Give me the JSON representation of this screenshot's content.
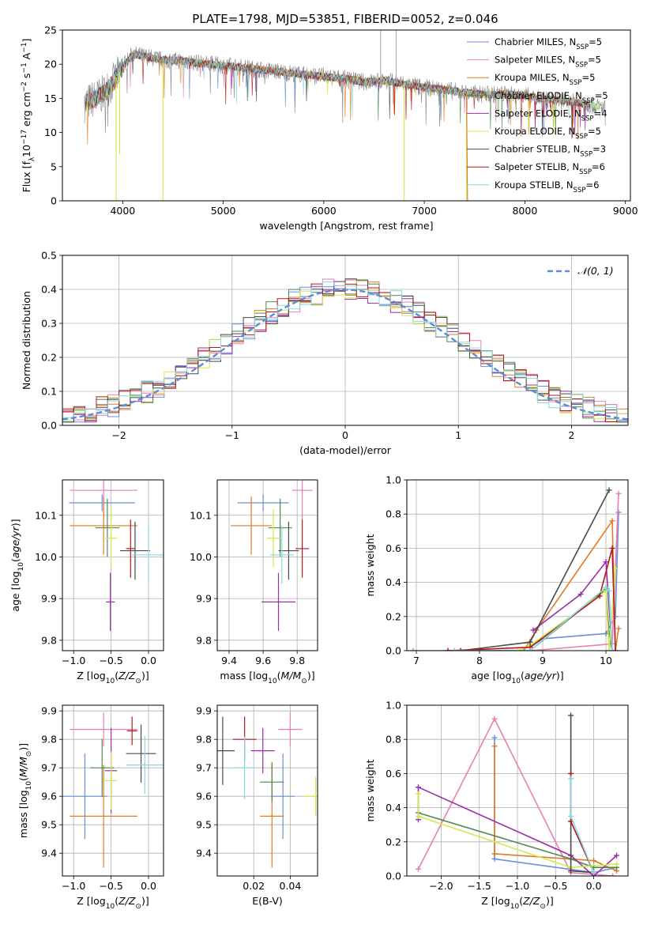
{
  "figure_title": "PLATE=1798, MJD=53851, FIBERID=0052, z=0.046",
  "colors": {
    "Chabrier MILES": "#6a8fd8",
    "Salpeter MILES": "#e87fb6",
    "Kroupa MILES": "#e07b27",
    "Chabrier ELODIE": "#4f8a4f",
    "Salpeter ELODIE": "#9b2faa",
    "Kroupa ELODIE": "#d4e84a",
    "Chabrier STELIB": "#4a4a4a",
    "Salpeter STELIB": "#b01b1b",
    "Kroupa STELIB": "#86d9e0",
    "spectrum": "#808080",
    "gaussian": "#5b8dd9"
  },
  "chart_data": [
    {
      "id": "spectrum",
      "type": "line",
      "title": "PLATE=1798, MJD=53851, FIBERID=0052, z=0.046",
      "xlabel": "wavelength [Angstrom, rest frame]",
      "ylabel": "Flux [f_λ 10^-17 erg cm^-2 s^-1 A^-1]",
      "xlim": [
        3400,
        9050
      ],
      "ylim": [
        0,
        25
      ],
      "xticks": [
        4000,
        5000,
        6000,
        7000,
        8000,
        9000
      ],
      "yticks": [
        0,
        5,
        10,
        15,
        20,
        25
      ],
      "grid": false,
      "legend_position": "right",
      "legend": [
        {
          "label": "Chabrier MILES, N",
          "sub": "SSP",
          "suffix": "=5"
        },
        {
          "label": "Salpeter MILES, N",
          "sub": "SSP",
          "suffix": "=5"
        },
        {
          "label": "Kroupa MILES, N",
          "sub": "SSP",
          "suffix": "=5"
        },
        {
          "label": "Chabrier ELODIE, N",
          "sub": "SSP",
          "suffix": "=5"
        },
        {
          "label": "Salpeter ELODIE, N",
          "sub": "SSP",
          "suffix": "=4"
        },
        {
          "label": "Kroupa ELODIE, N",
          "sub": "SSP",
          "suffix": "=5"
        },
        {
          "label": "Chabrier STELIB, N",
          "sub": "SSP",
          "suffix": "=3"
        },
        {
          "label": "Salpeter STELIB, N",
          "sub": "SSP",
          "suffix": "=6"
        },
        {
          "label": "Kroupa STELIB, N",
          "sub": "SSP",
          "suffix": "=6"
        }
      ],
      "continuum": {
        "x": [
          3620,
          3700,
          3800,
          3900,
          4000,
          4100,
          4200,
          4400,
          4600,
          4800,
          5000,
          5200,
          5500,
          5800,
          6000,
          6200,
          6400,
          6600,
          6800,
          7000,
          7200,
          7400,
          7600,
          7800,
          8000,
          8200,
          8400,
          8600,
          8800
        ],
        "y": [
          14.2,
          14.8,
          15.6,
          17.2,
          19.6,
          21.5,
          21.2,
          20.6,
          20.5,
          20.1,
          19.8,
          19.5,
          19.0,
          18.5,
          18.2,
          17.9,
          17.4,
          17.6,
          17.1,
          16.6,
          16.3,
          15.8,
          15.6,
          15.6,
          15.4,
          14.9,
          14.6,
          14.2,
          13.6
        ]
      },
      "spikes": [
        {
          "x": 3935,
          "y": 0
        },
        {
          "x": 3970,
          "y": 6.8
        },
        {
          "x": 4400,
          "y": 0
        },
        {
          "x": 6565,
          "y": 25
        },
        {
          "x": 6720,
          "y": 25
        },
        {
          "x": 6800,
          "y": 0
        },
        {
          "x": 7420,
          "y": 0
        }
      ]
    },
    {
      "id": "residuals",
      "type": "histogram",
      "xlabel": "(data-model)/error",
      "ylabel": "Normed distribution",
      "xlim": [
        -2.5,
        2.5
      ],
      "ylim": [
        0,
        0.5
      ],
      "xticks": [
        -2,
        -1,
        0,
        1,
        2
      ],
      "yticks": [
        0.0,
        0.1,
        0.2,
        0.3,
        0.4,
        0.5
      ],
      "grid": true,
      "legend_position": "top-right",
      "gaussian_label": "𝒩(0, 1)",
      "bin_width": 0.1
    },
    {
      "id": "age_vs_z",
      "type": "scatter",
      "xlabel": "Z [log10(Z/Z⊙)]",
      "ylabel": "age [log10(age/yr)]",
      "xlim": [
        -1.15,
        0.2
      ],
      "ylim": [
        9.775,
        10.185
      ],
      "xticks": [
        -1.0,
        -0.5,
        0.0
      ],
      "yticks": [
        9.8,
        9.9,
        10.0,
        10.1
      ],
      "grid": true,
      "points": [
        {
          "model": "Chabrier MILES",
          "x": -0.62,
          "xerr": 0.44,
          "y": 10.13,
          "yerr": 0.02
        },
        {
          "model": "Salpeter MILES",
          "x": -0.6,
          "xerr": 0.45,
          "y": 10.16,
          "yerr": 0.0
        },
        {
          "model": "Kroupa MILES",
          "x": -0.6,
          "xerr": 0.45,
          "y": 10.075,
          "yerr": 0.0
        },
        {
          "model": "Chabrier ELODIE",
          "x": -0.55,
          "xerr": 0.0,
          "y": 10.07,
          "yerr": 0.0
        },
        {
          "model": "Salpeter ELODIE",
          "x": -0.51,
          "xerr": 0.06,
          "y": 9.892,
          "yerr": 0.0
        },
        {
          "model": "Kroupa ELODIE",
          "x": -0.5,
          "xerr": 0.08,
          "y": 10.045,
          "yerr": 0.0
        },
        {
          "model": "Chabrier STELIB",
          "x": -0.18,
          "xerr": 0.2,
          "y": 10.015,
          "yerr": 0.0
        },
        {
          "model": "Salpeter STELIB",
          "x": -0.24,
          "xerr": 0.06,
          "y": 10.02,
          "yerr": 0.0
        },
        {
          "model": "Kroupa STELIB",
          "x": 0.0,
          "xerr": 0.22,
          "y": 10.005,
          "yerr": 0.0
        }
      ]
    },
    {
      "id": "age_vs_mass",
      "type": "scatter",
      "xlabel": "mass [log10(M/M⊙)]",
      "ylabel": "",
      "xlim": [
        9.33,
        9.92
      ],
      "ylim": [
        9.775,
        10.185
      ],
      "xticks": [
        9.4,
        9.6,
        9.8
      ],
      "yticks": [
        9.8,
        9.9,
        10.0,
        10.1
      ],
      "grid": true,
      "points": [
        {
          "model": "Chabrier MILES",
          "x": 9.6,
          "xerr": 0.15,
          "y": 10.13,
          "yerr": 0.02
        },
        {
          "model": "Salpeter MILES",
          "x": 9.83,
          "xerr": 0.06,
          "y": 10.16,
          "yerr": 0.0
        },
        {
          "model": "Kroupa MILES",
          "x": 9.53,
          "xerr": 0.12,
          "y": 10.075,
          "yerr": 0.0
        },
        {
          "model": "Chabrier ELODIE",
          "x": 9.7,
          "xerr": 0.0,
          "y": 10.07,
          "yerr": 0.0
        },
        {
          "model": "Salpeter ELODIE",
          "x": 9.69,
          "xerr": 0.1,
          "y": 9.892,
          "yerr": 0.0
        },
        {
          "model": "Kroupa ELODIE",
          "x": 9.66,
          "xerr": 0.04,
          "y": 10.045,
          "yerr": 0.0
        },
        {
          "model": "Chabrier STELIB",
          "x": 9.75,
          "xerr": 0.06,
          "y": 10.015,
          "yerr": 0.0
        },
        {
          "model": "Salpeter STELIB",
          "x": 9.83,
          "xerr": 0.04,
          "y": 10.02,
          "yerr": 0.0
        },
        {
          "model": "Kroupa STELIB",
          "x": 9.71,
          "xerr": 0.0,
          "y": 10.005,
          "yerr": 0.0
        }
      ]
    },
    {
      "id": "weight_vs_age",
      "type": "line",
      "xlabel": "age [log10(age/yr)]",
      "ylabel": "mass weight",
      "xlim": [
        6.85,
        10.35
      ],
      "ylim": [
        0,
        1
      ],
      "xticks": [
        7,
        8,
        9,
        10
      ],
      "yticks": [
        0.0,
        0.2,
        0.4,
        0.6,
        0.8,
        1.0
      ],
      "grid": true,
      "series": [
        {
          "model": "Chabrier MILES",
          "x": [
            8.8,
            9.0,
            10.0,
            10.15,
            10.2
          ],
          "y": [
            0.02,
            0.07,
            0.1,
            0.2,
            0.81
          ]
        },
        {
          "model": "Salpeter MILES",
          "x": [
            6.95,
            7.6,
            8.8,
            10.1,
            10.2
          ],
          "y": [
            0.0,
            0.0,
            0.0,
            0.04,
            0.92
          ]
        },
        {
          "model": "Kroupa MILES",
          "x": [
            8.7,
            8.9,
            10.1,
            10.15,
            10.2
          ],
          "y": [
            0.0,
            0.12,
            0.76,
            0.0,
            0.13
          ]
        },
        {
          "model": "Chabrier ELODIE",
          "x": [
            8.0,
            8.8,
            10.0,
            10.05,
            10.1
          ],
          "y": [
            0.0,
            0.0,
            0.36,
            0.1,
            0.0
          ]
        },
        {
          "model": "Salpeter ELODIE",
          "x": [
            8.85,
            9.6,
            10.0,
            10.1
          ],
          "y": [
            0.12,
            0.33,
            0.52,
            0.0
          ]
        },
        {
          "model": "Kroupa ELODIE",
          "x": [
            8.6,
            8.8,
            10.0,
            10.05,
            10.15
          ],
          "y": [
            0.0,
            0.03,
            0.35,
            0.0,
            0.48
          ]
        },
        {
          "model": "Chabrier STELIB",
          "x": [
            7.7,
            8.8,
            10.05
          ],
          "y": [
            0.0,
            0.05,
            0.94
          ]
        },
        {
          "model": "Salpeter STELIB",
          "x": [
            7.5,
            8.8,
            9.9,
            10.1,
            10.15
          ],
          "y": [
            0.0,
            0.02,
            0.32,
            0.6,
            0.0
          ]
        },
        {
          "model": "Kroupa STELIB",
          "x": [
            7.6,
            8.8,
            10.0,
            10.05,
            10.1
          ],
          "y": [
            0.0,
            0.0,
            0.37,
            0.35,
            0.0
          ]
        }
      ]
    },
    {
      "id": "mass_vs_z",
      "type": "scatter",
      "xlabel": "Z [log10(Z/Z⊙)]",
      "ylabel": "mass [log10(M/M⊙)]",
      "xlim": [
        -1.15,
        0.2
      ],
      "ylim": [
        9.32,
        9.92
      ],
      "xticks": [
        -1.0,
        -0.5,
        0.0
      ],
      "yticks": [
        9.4,
        9.5,
        9.6,
        9.7,
        9.8,
        9.9
      ],
      "grid": true,
      "points": [
        {
          "model": "Chabrier MILES",
          "x": -0.85,
          "xerr": 0.3,
          "y": 9.6,
          "yerr": 0.15
        },
        {
          "model": "Salpeter MILES",
          "x": -0.6,
          "xerr": 0.45,
          "y": 9.835,
          "yerr": 0.06
        },
        {
          "model": "Kroupa MILES",
          "x": -0.6,
          "xerr": 0.45,
          "y": 9.53,
          "yerr": 0.18
        },
        {
          "model": "Chabrier ELODIE",
          "x": -0.62,
          "xerr": 0.0,
          "y": 9.7,
          "yerr": 0.0
        },
        {
          "model": "Salpeter ELODIE",
          "x": -0.5,
          "xerr": 0.08,
          "y": 9.69,
          "yerr": 0.15
        },
        {
          "model": "Kroupa ELODIE",
          "x": -0.5,
          "xerr": 0.08,
          "y": 9.655,
          "yerr": 0.0
        },
        {
          "model": "Chabrier STELIB",
          "x": -0.1,
          "xerr": 0.2,
          "y": 9.75,
          "yerr": 0.0
        },
        {
          "model": "Salpeter STELIB",
          "x": -0.22,
          "xerr": 0.07,
          "y": 9.83,
          "yerr": 0.05
        },
        {
          "model": "Kroupa STELIB",
          "x": -0.05,
          "xerr": 0.25,
          "y": 9.71,
          "yerr": 0.0
        }
      ]
    },
    {
      "id": "mass_vs_ebv",
      "type": "scatter",
      "xlabel": "E(B-V)",
      "ylabel": "",
      "xlim": [
        0.0,
        0.055
      ],
      "ylim": [
        9.32,
        9.92
      ],
      "xticks": [
        0.02,
        0.04
      ],
      "yticks": [
        9.4,
        9.5,
        9.6,
        9.7,
        9.8,
        9.9
      ],
      "grid": true,
      "points": [
        {
          "model": "Chabrier MILES",
          "x": 0.036,
          "xerr": 0.0,
          "y": 9.6,
          "yerr": 0.15
        },
        {
          "model": "Salpeter MILES",
          "x": 0.04,
          "xerr": 0.0,
          "y": 9.835,
          "yerr": 0.06
        },
        {
          "model": "Kroupa MILES",
          "x": 0.03,
          "xerr": 0.0,
          "y": 9.53,
          "yerr": 0.18
        },
        {
          "model": "Chabrier ELODIE",
          "x": 0.03,
          "xerr": 0.0,
          "y": 9.65,
          "yerr": 0.07
        },
        {
          "model": "Salpeter ELODIE",
          "x": 0.025,
          "xerr": 0.0,
          "y": 9.76,
          "yerr": 0.08
        },
        {
          "model": "Kroupa ELODIE",
          "x": 0.054,
          "xerr": 0.0,
          "y": 9.6,
          "yerr": 0.07
        },
        {
          "model": "Chabrier STELIB",
          "x": 0.003,
          "xerr": 0.0,
          "y": 9.76,
          "yerr": 0.12
        },
        {
          "model": "Salpeter STELIB",
          "x": 0.015,
          "xerr": 0.0,
          "y": 9.8,
          "yerr": 0.08
        },
        {
          "model": "Kroupa STELIB",
          "x": 0.015,
          "xerr": 0.0,
          "y": 9.7,
          "yerr": 0.11
        }
      ]
    },
    {
      "id": "weight_vs_z",
      "type": "line",
      "xlabel": "Z [log10(Z/Z⊙)]",
      "ylabel": "mass weight",
      "xlim": [
        -2.45,
        0.45
      ],
      "ylim": [
        0,
        1
      ],
      "xticks": [
        -2.0,
        -1.5,
        -1.0,
        -0.5,
        0.0
      ],
      "yticks": [
        0.0,
        0.2,
        0.4,
        0.6,
        0.8,
        1.0
      ],
      "grid": true,
      "series": [
        {
          "model": "Chabrier MILES",
          "x": [
            -1.3,
            -1.3,
            0.0,
            0.3
          ],
          "y": [
            0.81,
            0.1,
            0.02,
            0.05
          ]
        },
        {
          "model": "Salpeter MILES",
          "x": [
            -2.3,
            -1.3,
            -0.3,
            0.25
          ],
          "y": [
            0.04,
            0.92,
            0.02,
            0.0
          ]
        },
        {
          "model": "Kroupa MILES",
          "x": [
            -1.3,
            -1.3,
            0.0,
            0.3
          ],
          "y": [
            0.76,
            0.13,
            0.09,
            0.03
          ]
        },
        {
          "model": "Chabrier ELODIE",
          "x": [
            -2.3,
            -0.3,
            0.0,
            0.3
          ],
          "y": [
            0.37,
            0.1,
            0.05,
            0.05
          ]
        },
        {
          "model": "Salpeter ELODIE",
          "x": [
            -2.3,
            -2.3,
            -0.3,
            0.0,
            0.3
          ],
          "y": [
            0.33,
            0.52,
            0.12,
            0.0,
            0.12
          ]
        },
        {
          "model": "Kroupa ELODIE",
          "x": [
            -2.3,
            -2.3,
            -0.3,
            0.3
          ],
          "y": [
            0.48,
            0.35,
            0.05,
            0.07
          ]
        },
        {
          "model": "Chabrier STELIB",
          "x": [
            -0.3,
            -0.3,
            0.0
          ],
          "y": [
            0.94,
            0.03,
            0.02
          ]
        },
        {
          "model": "Salpeter STELIB",
          "x": [
            -0.3,
            -0.3,
            0.0
          ],
          "y": [
            0.6,
            0.32,
            0.02
          ]
        },
        {
          "model": "Kroupa STELIB",
          "x": [
            -0.3,
            -0.3,
            0.0
          ],
          "y": [
            0.57,
            0.35,
            0.02
          ]
        }
      ]
    }
  ]
}
